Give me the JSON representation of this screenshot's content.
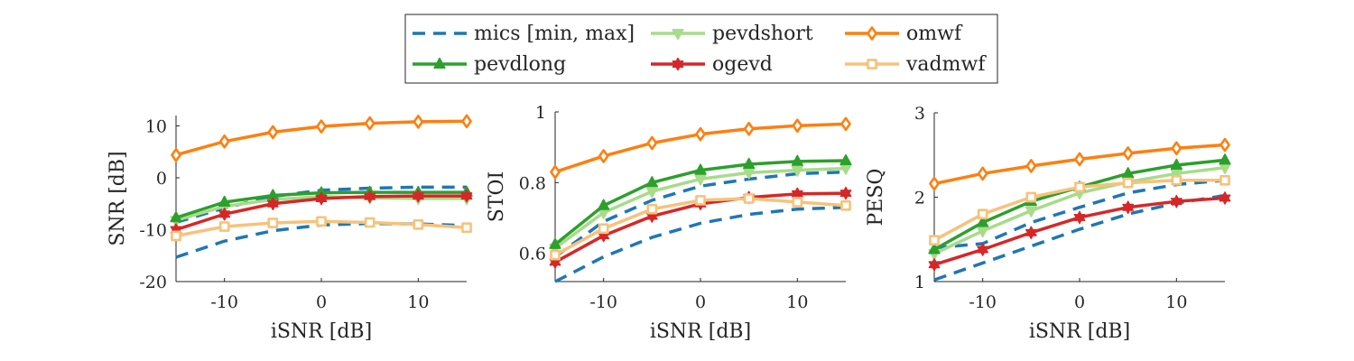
{
  "legend": {
    "entries": [
      {
        "label": "mics [min, max]",
        "series": "mics"
      },
      {
        "label": "pevdshort",
        "series": "pevdshort"
      },
      {
        "label": "omwf",
        "series": "omwf"
      },
      {
        "label": "pevdlong",
        "series": "pevdlong"
      },
      {
        "label": "ogevd",
        "series": "ogevd"
      },
      {
        "label": "vadmwf",
        "series": "vadmwf"
      }
    ]
  },
  "styles": {
    "mics": {
      "color": "#1f77b4",
      "dash": true,
      "marker": "none"
    },
    "pevdlong": {
      "color": "#2ca02c",
      "marker": "triangle-up"
    },
    "pevdshort": {
      "color": "#a8db8a",
      "marker": "triangle-down"
    },
    "ogevd": {
      "color": "#d62728",
      "marker": "hexagram"
    },
    "omwf": {
      "color": "#ff7f0e",
      "marker": "diamond"
    },
    "vadmwf": {
      "color": "#f7c27a",
      "marker": "square"
    }
  },
  "chart_data": [
    {
      "type": "line",
      "xlabel": "iSNR [dB]",
      "ylabel": "SNR [dB]",
      "xlim": [
        -15,
        15
      ],
      "ylim": [
        -20,
        12
      ],
      "xticks": [
        -10,
        0,
        10
      ],
      "xtick_labels": [
        "-10",
        "0",
        "10"
      ],
      "yticks": [
        -20,
        -10,
        0,
        10
      ],
      "ytick_labels": [
        "-20",
        "-10",
        "0",
        "10"
      ],
      "x": [
        -15,
        -10,
        -5,
        0,
        5,
        10,
        15
      ],
      "series": [
        {
          "name": "mics [min, max]",
          "key": "mics",
          "values": [
            -15.3,
            -12.2,
            -10.2,
            -9.1,
            -8.8,
            -8.9,
            -9.2
          ]
        },
        {
          "name": "mics [min, max]",
          "key": "mics",
          "values": [
            -8.6,
            -5.8,
            -3.6,
            -2.4,
            -2.0,
            -1.8,
            -1.8
          ]
        },
        {
          "name": "omwf",
          "key": "omwf",
          "values": [
            4.4,
            7.0,
            8.8,
            9.9,
            10.5,
            10.8,
            10.9
          ]
        },
        {
          "name": "pevdshort",
          "key": "pevdshort",
          "values": [
            -8.2,
            -5.5,
            -4.2,
            -3.6,
            -3.9,
            -4.0,
            -4.0
          ]
        },
        {
          "name": "pevdlong",
          "key": "pevdlong",
          "values": [
            -7.7,
            -4.7,
            -3.4,
            -2.9,
            -2.8,
            -2.8,
            -2.8
          ]
        },
        {
          "name": "ogevd",
          "key": "ogevd",
          "values": [
            -10.0,
            -7.0,
            -5.0,
            -4.0,
            -3.6,
            -3.5,
            -3.5
          ]
        },
        {
          "name": "vadmwf",
          "key": "vadmwf",
          "values": [
            -11.2,
            -9.4,
            -8.7,
            -8.4,
            -8.6,
            -9.0,
            -9.6
          ]
        }
      ]
    },
    {
      "type": "line",
      "xlabel": "iSNR [dB]",
      "ylabel": "STOI",
      "xlim": [
        -15,
        15
      ],
      "ylim": [
        0.52,
        1.0
      ],
      "xticks": [
        -10,
        0,
        10
      ],
      "xtick_labels": [
        "-10",
        "0",
        "10"
      ],
      "yticks": [
        0.6,
        0.8,
        1.0
      ],
      "ytick_labels": [
        "0.6",
        "0.8",
        "1"
      ],
      "x": [
        -15,
        -10,
        -5,
        0,
        5,
        10,
        15
      ],
      "series": [
        {
          "name": "mics [min, max]",
          "key": "mics",
          "values": [
            0.52,
            0.59,
            0.645,
            0.685,
            0.71,
            0.725,
            0.73
          ]
        },
        {
          "name": "mics [min, max]",
          "key": "mics",
          "values": [
            0.59,
            0.69,
            0.75,
            0.79,
            0.81,
            0.825,
            0.83
          ]
        },
        {
          "name": "omwf",
          "key": "omwf",
          "values": [
            0.83,
            0.875,
            0.912,
            0.937,
            0.952,
            0.961,
            0.966
          ]
        },
        {
          "name": "pevdshort",
          "key": "pevdshort",
          "values": [
            0.615,
            0.715,
            0.775,
            0.81,
            0.828,
            0.835,
            0.84
          ]
        },
        {
          "name": "pevdlong",
          "key": "pevdlong",
          "values": [
            0.625,
            0.735,
            0.8,
            0.835,
            0.852,
            0.86,
            0.862
          ]
        },
        {
          "name": "ogevd",
          "key": "ogevd",
          "values": [
            0.575,
            0.65,
            0.705,
            0.74,
            0.758,
            0.768,
            0.77
          ]
        },
        {
          "name": "vadmwf",
          "key": "vadmwf",
          "values": [
            0.595,
            0.67,
            0.725,
            0.75,
            0.755,
            0.745,
            0.735
          ]
        }
      ]
    },
    {
      "type": "line",
      "xlabel": "iSNR [dB]",
      "ylabel": "PESQ",
      "xlim": [
        -15,
        15
      ],
      "ylim": [
        1.0,
        3.0
      ],
      "xticks": [
        -10,
        0,
        10
      ],
      "xtick_labels": [
        "-10",
        "0",
        "10"
      ],
      "yticks": [
        1,
        2,
        3
      ],
      "ytick_labels": [
        "1",
        "2",
        "3"
      ],
      "x": [
        -15,
        -10,
        -5,
        0,
        5,
        10,
        15
      ],
      "series": [
        {
          "name": "mics [min, max]",
          "key": "mics",
          "values": [
            1.02,
            1.22,
            1.42,
            1.62,
            1.8,
            1.93,
            2.02
          ]
        },
        {
          "name": "mics [min, max]",
          "key": "mics",
          "values": [
            1.4,
            1.45,
            1.7,
            1.88,
            2.05,
            2.15,
            2.2
          ]
        },
        {
          "name": "omwf",
          "key": "omwf",
          "values": [
            2.16,
            2.28,
            2.37,
            2.45,
            2.52,
            2.58,
            2.62
          ]
        },
        {
          "name": "pevdshort",
          "key": "pevdshort",
          "values": [
            1.33,
            1.6,
            1.84,
            2.05,
            2.18,
            2.28,
            2.35
          ]
        },
        {
          "name": "pevdlong",
          "key": "pevdlong",
          "values": [
            1.38,
            1.7,
            1.95,
            2.12,
            2.28,
            2.38,
            2.44
          ]
        },
        {
          "name": "ogevd",
          "key": "ogevd",
          "values": [
            1.2,
            1.38,
            1.58,
            1.76,
            1.88,
            1.95,
            1.99
          ]
        },
        {
          "name": "vadmwf",
          "key": "vadmwf",
          "values": [
            1.49,
            1.8,
            2.0,
            2.12,
            2.17,
            2.2,
            2.2
          ]
        }
      ]
    }
  ]
}
